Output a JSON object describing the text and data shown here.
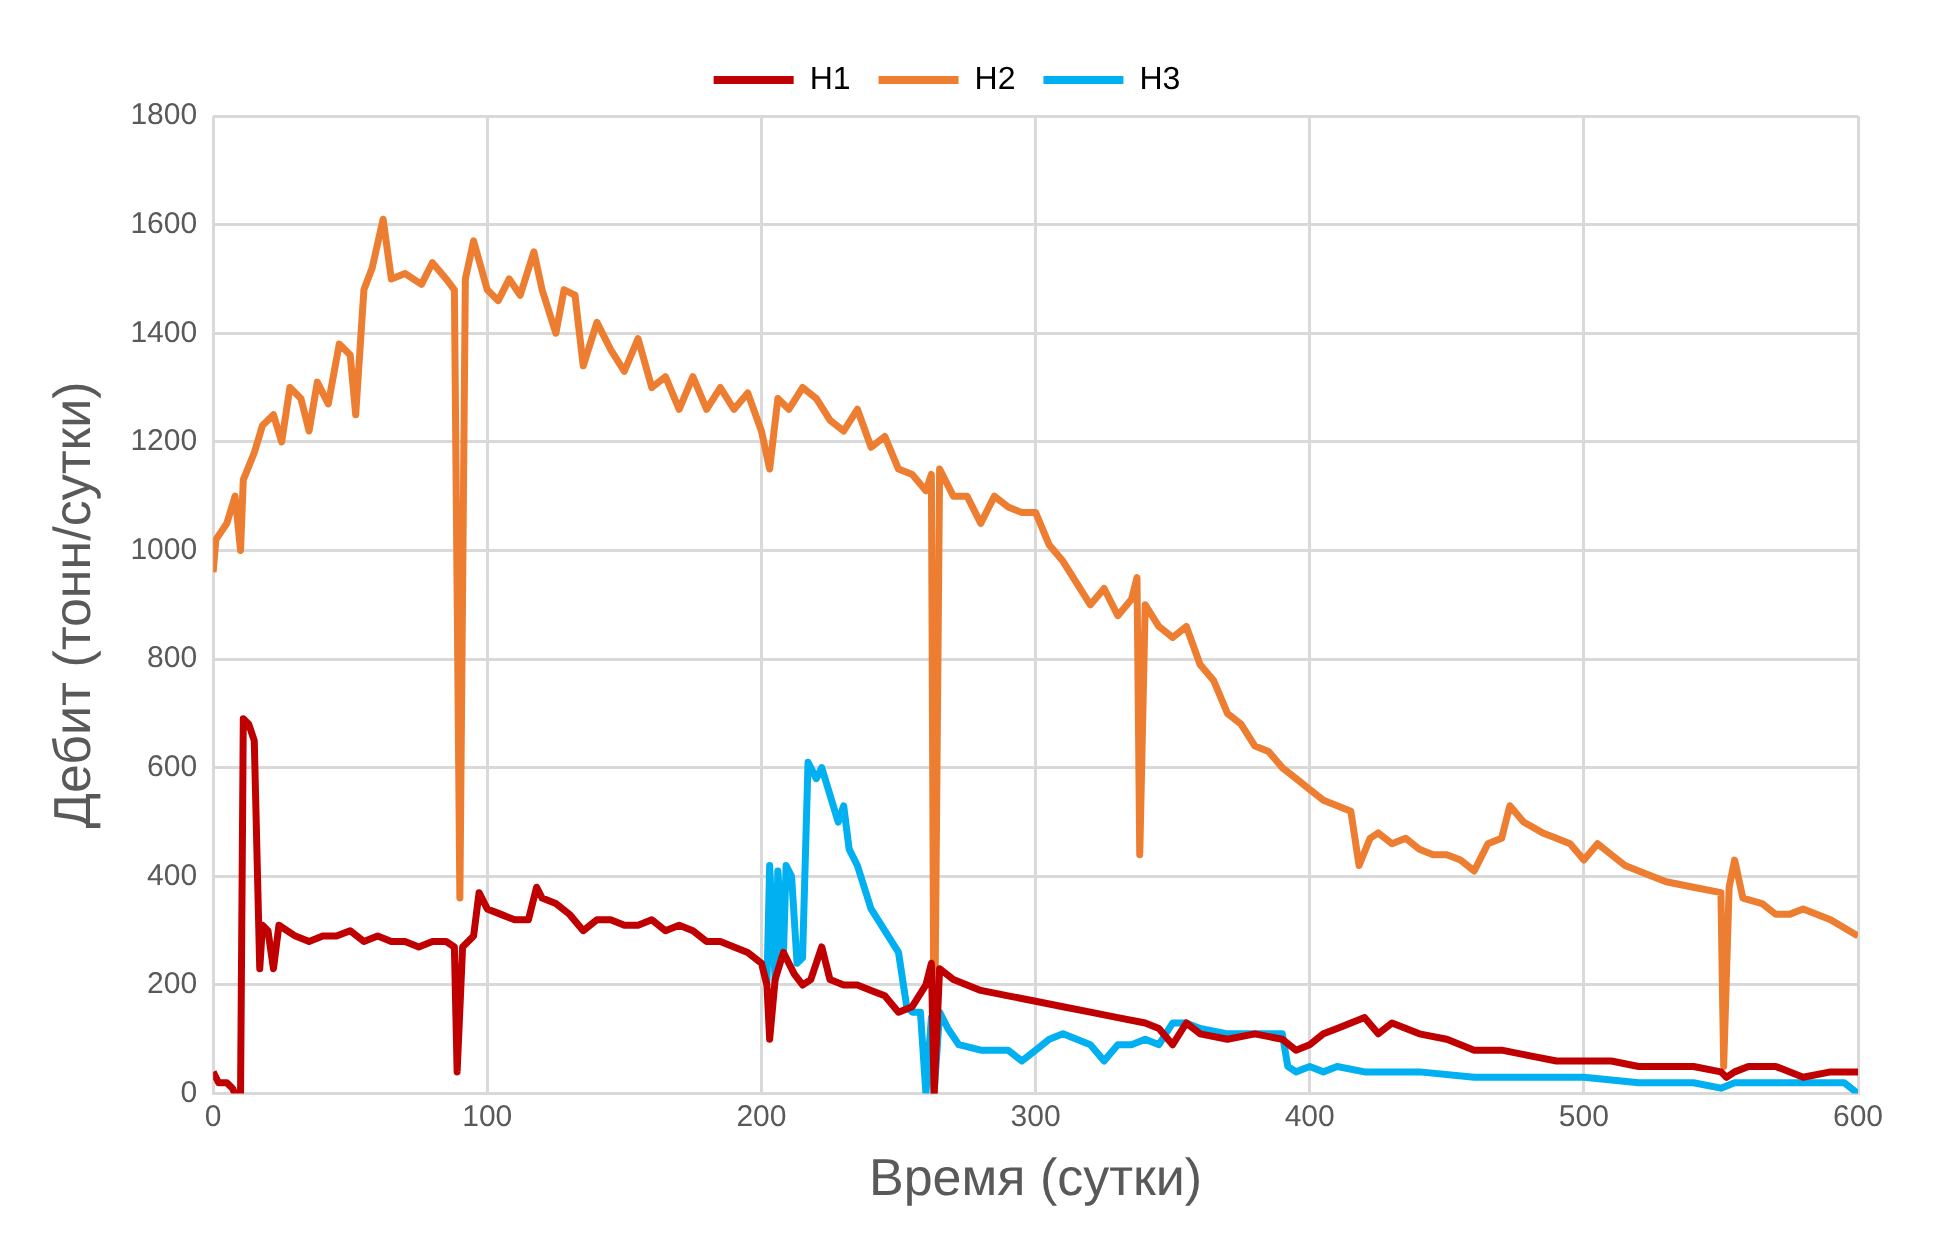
{
  "chart_data": {
    "type": "line",
    "xlabel": "Время (сутки)",
    "ylabel": "Дебит (тонн/сутки)",
    "xlim": [
      0,
      600
    ],
    "xticks": [
      0,
      100,
      200,
      300,
      400,
      500,
      600
    ],
    "ylim": [
      0,
      1800
    ],
    "yticks": [
      0,
      200,
      400,
      600,
      800,
      1000,
      1200,
      1400,
      1600,
      1800
    ],
    "grid": true,
    "legend": "top",
    "marker": "none",
    "line_style": "solid",
    "series": [
      {
        "name": "H1",
        "color": "#c00000",
        "x": [
          0,
          2,
          5,
          7,
          8,
          10,
          11,
          13,
          15,
          17,
          18,
          20,
          22,
          24,
          30,
          35,
          40,
          45,
          50,
          55,
          60,
          65,
          70,
          75,
          80,
          85,
          88,
          89,
          91,
          95,
          97,
          100,
          105,
          110,
          115,
          118,
          120,
          125,
          130,
          135,
          140,
          145,
          150,
          155,
          160,
          165,
          170,
          175,
          180,
          185,
          190,
          195,
          200,
          202,
          203,
          205,
          208,
          212,
          215,
          218,
          222,
          225,
          230,
          235,
          240,
          245,
          250,
          255,
          260,
          262,
          263,
          265,
          270,
          275,
          280,
          290,
          300,
          310,
          320,
          330,
          340,
          345,
          350,
          355,
          360,
          370,
          380,
          390,
          395,
          400,
          405,
          410,
          415,
          420,
          425,
          430,
          440,
          450,
          460,
          470,
          480,
          490,
          500,
          510,
          520,
          530,
          540,
          550,
          552,
          555,
          560,
          570,
          580,
          590,
          600
        ],
        "values": [
          40,
          20,
          20,
          10,
          0,
          0,
          690,
          680,
          650,
          230,
          310,
          300,
          230,
          310,
          290,
          280,
          290,
          290,
          300,
          280,
          290,
          280,
          280,
          270,
          280,
          280,
          270,
          40,
          270,
          290,
          370,
          340,
          330,
          320,
          320,
          380,
          360,
          350,
          330,
          300,
          320,
          320,
          310,
          310,
          320,
          300,
          310,
          300,
          280,
          280,
          270,
          260,
          240,
          200,
          100,
          210,
          260,
          220,
          200,
          210,
          270,
          210,
          200,
          200,
          190,
          180,
          150,
          160,
          200,
          240,
          0,
          230,
          210,
          200,
          190,
          180,
          170,
          160,
          150,
          140,
          130,
          120,
          90,
          130,
          110,
          100,
          110,
          100,
          80,
          90,
          110,
          120,
          130,
          140,
          110,
          130,
          110,
          100,
          80,
          80,
          70,
          60,
          60,
          60,
          50,
          50,
          50,
          40,
          30,
          40,
          50,
          50,
          30,
          40,
          40
        ]
      },
      {
        "name": "H2",
        "color": "#ed7d31",
        "x": [
          0,
          1,
          5,
          8,
          10,
          11,
          15,
          18,
          22,
          25,
          28,
          32,
          35,
          38,
          42,
          46,
          50,
          52,
          55,
          58,
          62,
          65,
          70,
          76,
          80,
          85,
          88,
          90,
          92,
          95,
          100,
          104,
          108,
          112,
          117,
          120,
          125,
          128,
          132,
          135,
          140,
          145,
          150,
          155,
          160,
          165,
          170,
          175,
          180,
          185,
          190,
          195,
          200,
          203,
          206,
          210,
          215,
          220,
          225,
          230,
          235,
          240,
          245,
          250,
          255,
          260,
          262,
          263,
          265,
          270,
          275,
          280,
          285,
          290,
          295,
          300,
          305,
          310,
          315,
          320,
          325,
          330,
          335,
          337,
          338,
          340,
          345,
          350,
          355,
          360,
          365,
          370,
          375,
          380,
          385,
          390,
          395,
          400,
          405,
          410,
          415,
          418,
          422,
          425,
          430,
          435,
          440,
          445,
          450,
          455,
          460,
          465,
          470,
          473,
          478,
          485,
          490,
          495,
          500,
          505,
          510,
          515,
          520,
          530,
          540,
          550,
          551,
          553,
          555,
          558,
          565,
          570,
          575,
          580,
          590,
          600
        ],
        "values": [
          960,
          1020,
          1050,
          1100,
          1000,
          1130,
          1180,
          1230,
          1250,
          1200,
          1300,
          1280,
          1220,
          1310,
          1270,
          1380,
          1360,
          1250,
          1480,
          1520,
          1610,
          1500,
          1510,
          1490,
          1530,
          1500,
          1480,
          360,
          1500,
          1570,
          1480,
          1460,
          1500,
          1470,
          1550,
          1480,
          1400,
          1480,
          1470,
          1340,
          1420,
          1370,
          1330,
          1390,
          1300,
          1320,
          1260,
          1320,
          1260,
          1300,
          1260,
          1290,
          1220,
          1150,
          1280,
          1260,
          1300,
          1280,
          1240,
          1220,
          1260,
          1190,
          1210,
          1150,
          1140,
          1110,
          1140,
          0,
          1150,
          1100,
          1100,
          1050,
          1100,
          1080,
          1070,
          1070,
          1010,
          980,
          940,
          900,
          930,
          880,
          910,
          950,
          440,
          900,
          860,
          840,
          860,
          790,
          760,
          700,
          680,
          640,
          630,
          600,
          580,
          560,
          540,
          530,
          520,
          420,
          470,
          480,
          460,
          470,
          450,
          440,
          440,
          430,
          410,
          460,
          470,
          530,
          500,
          480,
          470,
          460,
          430,
          460,
          440,
          420,
          410,
          390,
          380,
          370,
          50,
          380,
          430,
          360,
          350,
          330,
          330,
          340,
          320,
          290
        ]
      },
      {
        "name": "H3",
        "color": "#00b0f0",
        "x": [
          202,
          203,
          205,
          206,
          208,
          209,
          211,
          213,
          215,
          217,
          220,
          222,
          225,
          228,
          230,
          232,
          235,
          240,
          245,
          250,
          253,
          255,
          258,
          260,
          262,
          263,
          265,
          268,
          272,
          280,
          290,
          295,
          300,
          305,
          310,
          320,
          325,
          330,
          335,
          340,
          345,
          350,
          355,
          360,
          370,
          380,
          390,
          392,
          395,
          400,
          405,
          410,
          420,
          440,
          460,
          480,
          500,
          520,
          540,
          550,
          555,
          560,
          580,
          595,
          600
        ],
        "values": [
          200,
          420,
          210,
          410,
          250,
          420,
          400,
          240,
          250,
          610,
          580,
          600,
          550,
          500,
          530,
          450,
          420,
          340,
          300,
          260,
          160,
          150,
          150,
          0,
          140,
          0,
          150,
          120,
          90,
          80,
          80,
          60,
          80,
          100,
          110,
          90,
          60,
          90,
          90,
          100,
          90,
          130,
          130,
          120,
          110,
          110,
          110,
          50,
          40,
          50,
          40,
          50,
          40,
          40,
          30,
          30,
          30,
          20,
          20,
          10,
          20,
          20,
          20,
          20,
          0
        ]
      }
    ]
  }
}
